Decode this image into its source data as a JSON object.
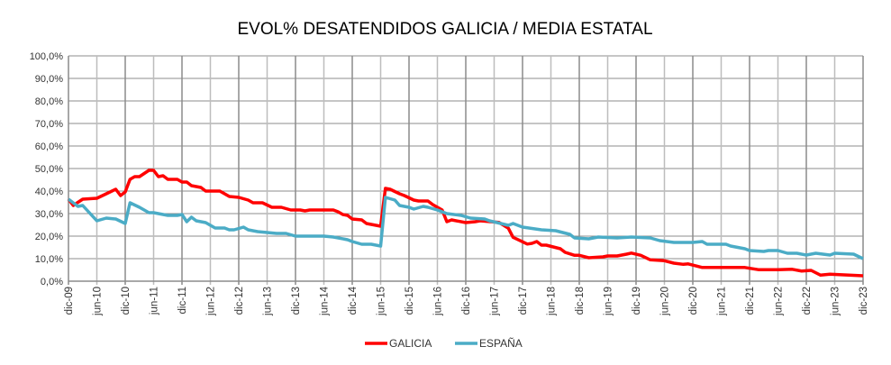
{
  "chart_data": {
    "type": "line",
    "title": "EVOL% DESATENDIDOS GALICIA / MEDIA ESTATAL",
    "xlabel": "",
    "ylabel": "",
    "ylim": [
      0,
      100
    ],
    "yticks": [
      "0,0%",
      "10,0%",
      "20,0%",
      "30,0%",
      "40,0%",
      "50,0%",
      "60,0%",
      "70,0%",
      "80,0%",
      "90,0%",
      "100,0%"
    ],
    "xlim": [
      "2009-12",
      "2023-12"
    ],
    "xticks": [
      "dic-09",
      "jun-10",
      "dic-10",
      "jun-11",
      "dic-11",
      "jun-12",
      "dic-12",
      "jun-13",
      "dic-13",
      "jun-14",
      "dic-14",
      "jun-15",
      "dic-15",
      "jun-16",
      "dic-16",
      "jun-17",
      "dic-17",
      "jun-18",
      "dic-18",
      "jun-19",
      "dic-19",
      "jun-20",
      "dic-20",
      "jun-21",
      "dic-21",
      "jun-22",
      "dic-22",
      "jun-23",
      "dic-23"
    ],
    "grid": true,
    "legend_position": "bottom",
    "series": [
      {
        "name": "GALICIA",
        "color": "#FF0000",
        "x": [
          "2009-12",
          "2010-01",
          "2010-03",
          "2010-06",
          "2010-08",
          "2010-10",
          "2010-11",
          "2010-12",
          "2011-01",
          "2011-02",
          "2011-03",
          "2011-05",
          "2011-06",
          "2011-07",
          "2011-08",
          "2011-09",
          "2011-11",
          "2011-12",
          "2012-01",
          "2012-02",
          "2012-04",
          "2012-05",
          "2012-08",
          "2012-10",
          "2012-12",
          "2013-02",
          "2013-03",
          "2013-05",
          "2013-07",
          "2013-09",
          "2013-11",
          "2014-01",
          "2014-02",
          "2014-03",
          "2014-08",
          "2014-09",
          "2014-10",
          "2014-11",
          "2014-12",
          "2015-02",
          "2015-03",
          "2015-06",
          "2015-07",
          "2015-08",
          "2015-10",
          "2015-11",
          "2016-01",
          "2016-02",
          "2016-04",
          "2016-05",
          "2016-07",
          "2016-08",
          "2016-09",
          "2016-12",
          "2017-02",
          "2017-03",
          "2017-07",
          "2017-09",
          "2017-10",
          "2017-11",
          "2018-01",
          "2018-02",
          "2018-03",
          "2018-04",
          "2018-05",
          "2018-08",
          "2018-09",
          "2018-11",
          "2018-12",
          "2019-02",
          "2019-05",
          "2019-06",
          "2019-08",
          "2019-10",
          "2019-11",
          "2020-01",
          "2020-03",
          "2020-06",
          "2020-08",
          "2020-10",
          "2020-11",
          "2021-02",
          "2021-11",
          "2022-02",
          "2022-06",
          "2022-09",
          "2022-11",
          "2023-01",
          "2023-03",
          "2023-05",
          "2023-09",
          "2023-12"
        ],
        "values": [
          36.4,
          33.6,
          36.4,
          36.8,
          38.8,
          40.8,
          38.0,
          39.6,
          45.2,
          46.4,
          46.4,
          49.2,
          49.2,
          46.4,
          46.8,
          45.2,
          45.2,
          44.0,
          44.0,
          42.4,
          41.6,
          40.0,
          40.0,
          37.6,
          37.2,
          36.0,
          34.8,
          34.8,
          32.8,
          32.8,
          31.6,
          31.6,
          31.2,
          31.6,
          31.6,
          30.8,
          29.6,
          29.2,
          27.6,
          27.2,
          25.6,
          24.4,
          41.2,
          40.8,
          38.8,
          38.0,
          36.0,
          35.6,
          35.6,
          34.0,
          31.6,
          26.4,
          27.2,
          26.0,
          26.4,
          26.8,
          26.1,
          23.5,
          19.5,
          18.5,
          16.5,
          16.8,
          17.6,
          16.0,
          16.0,
          14.4,
          12.8,
          11.5,
          11.5,
          10.4,
          10.8,
          11.2,
          11.2,
          12.0,
          12.5,
          11.5,
          9.5,
          9.1,
          8.0,
          7.5,
          7.7,
          6.1,
          6.1,
          5.1,
          5.1,
          5.3,
          4.5,
          4.8,
          2.7,
          3.1,
          2.7,
          2.4
        ]
      },
      {
        "name": "ESPAÑA",
        "color": "#4BACC6",
        "x": [
          "2009-12",
          "2010-02",
          "2010-03",
          "2010-06",
          "2010-08",
          "2010-10",
          "2010-12",
          "2011-01",
          "2011-03",
          "2011-05",
          "2011-06",
          "2011-09",
          "2011-11",
          "2011-12",
          "2012-01",
          "2012-02",
          "2012-03",
          "2012-05",
          "2012-07",
          "2012-09",
          "2012-10",
          "2012-11",
          "2013-01",
          "2013-02",
          "2013-04",
          "2013-08",
          "2013-10",
          "2013-12",
          "2014-06",
          "2014-08",
          "2014-11",
          "2014-12",
          "2015-02",
          "2015-04",
          "2015-06",
          "2015-07",
          "2015-09",
          "2015-10",
          "2015-12",
          "2016-01",
          "2016-03",
          "2016-04",
          "2016-06",
          "2016-08",
          "2016-11",
          "2017-01",
          "2017-04",
          "2017-05",
          "2017-09",
          "2017-10",
          "2017-12",
          "2018-04",
          "2018-07",
          "2018-10",
          "2018-11",
          "2019-02",
          "2019-04",
          "2019-08",
          "2019-11",
          "2020-03",
          "2020-05",
          "2020-08",
          "2020-12",
          "2021-02",
          "2021-03",
          "2021-07",
          "2021-08",
          "2021-11",
          "2021-12",
          "2022-03",
          "2022-04",
          "2022-06",
          "2022-08",
          "2022-10",
          "2022-12",
          "2023-02",
          "2023-05",
          "2023-06",
          "2023-10",
          "2023-12"
        ],
        "values": [
          36.4,
          33.2,
          33.6,
          26.8,
          28.0,
          27.6,
          25.6,
          34.8,
          32.8,
          30.4,
          30.4,
          29.2,
          29.2,
          29.6,
          26.4,
          28.4,
          26.8,
          26.0,
          23.6,
          23.6,
          22.8,
          22.8,
          24.0,
          22.8,
          22.0,
          21.2,
          21.2,
          20.0,
          20.0,
          19.6,
          18.4,
          17.6,
          16.4,
          16.4,
          15.6,
          37.2,
          36.0,
          33.6,
          32.8,
          32.0,
          33.2,
          32.8,
          31.6,
          30.0,
          29.2,
          28.0,
          27.6,
          26.8,
          24.8,
          25.6,
          24.0,
          22.8,
          22.4,
          20.8,
          19.2,
          18.8,
          19.6,
          19.2,
          19.6,
          19.2,
          18.0,
          17.2,
          17.2,
          17.6,
          16.4,
          16.4,
          15.6,
          14.4,
          13.6,
          13.2,
          13.6,
          13.6,
          12.4,
          12.4,
          11.6,
          12.4,
          11.6,
          12.4,
          12.0,
          10.0
        ]
      }
    ]
  }
}
